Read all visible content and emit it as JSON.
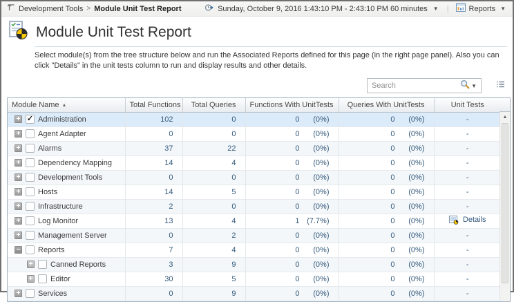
{
  "breadcrumb": {
    "parent": "Development Tools",
    "separator": ">",
    "current": "Module Unit Test Report"
  },
  "topbar": {
    "time_range_label": "Sunday, October 9, 2016 1:43:10 PM - 2:43:10 PM 60 minutes",
    "reports_label": "Reports"
  },
  "page": {
    "title": "Module Unit Test Report",
    "description": "Select module(s) from the tree structure below and run the Associated Reports defined for this page (in the right page panel). Also you can click \"Details\" in the unit tests column to run and display results and other details."
  },
  "search": {
    "placeholder": "Search"
  },
  "table": {
    "columns": [
      "Module Name",
      "Total Functions",
      "Total Queries",
      "Functions With UnitTests",
      "Queries With UnitTests",
      "Unit Tests"
    ],
    "sort": {
      "column": "Module Name",
      "direction": "asc"
    },
    "rows": [
      {
        "name": "Administration",
        "level": 0,
        "expanded": false,
        "checked": true,
        "selected": true,
        "total_functions": "102",
        "total_queries": "0",
        "functions_with_unittests": "0",
        "functions_with_unittests_pct": "(0%)",
        "queries_with_unittests": "0",
        "queries_with_unittests_pct": "(0%)",
        "unit_tests": "-",
        "has_details": false
      },
      {
        "name": "Agent Adapter",
        "level": 0,
        "expanded": false,
        "checked": false,
        "selected": false,
        "total_functions": "0",
        "total_queries": "0",
        "functions_with_unittests": "0",
        "functions_with_unittests_pct": "(0%)",
        "queries_with_unittests": "0",
        "queries_with_unittests_pct": "(0%)",
        "unit_tests": "-",
        "has_details": false
      },
      {
        "name": "Alarms",
        "level": 0,
        "expanded": false,
        "checked": false,
        "selected": false,
        "total_functions": "37",
        "total_queries": "22",
        "functions_with_unittests": "0",
        "functions_with_unittests_pct": "(0%)",
        "queries_with_unittests": "0",
        "queries_with_unittests_pct": "(0%)",
        "unit_tests": "-",
        "has_details": false
      },
      {
        "name": "Dependency Mapping",
        "level": 0,
        "expanded": false,
        "checked": false,
        "selected": false,
        "total_functions": "14",
        "total_queries": "4",
        "functions_with_unittests": "0",
        "functions_with_unittests_pct": "(0%)",
        "queries_with_unittests": "0",
        "queries_with_unittests_pct": "(0%)",
        "unit_tests": "-",
        "has_details": false
      },
      {
        "name": "Development Tools",
        "level": 0,
        "expanded": false,
        "checked": false,
        "selected": false,
        "total_functions": "0",
        "total_queries": "0",
        "functions_with_unittests": "0",
        "functions_with_unittests_pct": "(0%)",
        "queries_with_unittests": "0",
        "queries_with_unittests_pct": "(0%)",
        "unit_tests": "-",
        "has_details": false
      },
      {
        "name": "Hosts",
        "level": 0,
        "expanded": false,
        "checked": false,
        "selected": false,
        "total_functions": "14",
        "total_queries": "5",
        "functions_with_unittests": "0",
        "functions_with_unittests_pct": "(0%)",
        "queries_with_unittests": "0",
        "queries_with_unittests_pct": "(0%)",
        "unit_tests": "-",
        "has_details": false
      },
      {
        "name": "Infrastructure",
        "level": 0,
        "expanded": false,
        "checked": false,
        "selected": false,
        "total_functions": "2",
        "total_queries": "0",
        "functions_with_unittests": "0",
        "functions_with_unittests_pct": "(0%)",
        "queries_with_unittests": "0",
        "queries_with_unittests_pct": "(0%)",
        "unit_tests": "-",
        "has_details": false
      },
      {
        "name": "Log Monitor",
        "level": 0,
        "expanded": false,
        "checked": false,
        "selected": false,
        "total_functions": "13",
        "total_queries": "4",
        "functions_with_unittests": "1",
        "functions_with_unittests_pct": "(7.7%)",
        "queries_with_unittests": "0",
        "queries_with_unittests_pct": "(0%)",
        "unit_tests": "Details",
        "has_details": true
      },
      {
        "name": "Management Server",
        "level": 0,
        "expanded": false,
        "checked": false,
        "selected": false,
        "total_functions": "0",
        "total_queries": "2",
        "functions_with_unittests": "0",
        "functions_with_unittests_pct": "(0%)",
        "queries_with_unittests": "0",
        "queries_with_unittests_pct": "(0%)",
        "unit_tests": "-",
        "has_details": false
      },
      {
        "name": "Reports",
        "level": 0,
        "expanded": true,
        "checked": false,
        "selected": false,
        "total_functions": "7",
        "total_queries": "4",
        "functions_with_unittests": "0",
        "functions_with_unittests_pct": "(0%)",
        "queries_with_unittests": "0",
        "queries_with_unittests_pct": "(0%)",
        "unit_tests": "-",
        "has_details": false
      },
      {
        "name": "Canned Reports",
        "level": 1,
        "expanded": false,
        "checked": false,
        "selected": false,
        "total_functions": "3",
        "total_queries": "9",
        "functions_with_unittests": "0",
        "functions_with_unittests_pct": "(0%)",
        "queries_with_unittests": "0",
        "queries_with_unittests_pct": "(0%)",
        "unit_tests": "-",
        "has_details": false
      },
      {
        "name": "Editor",
        "level": 1,
        "expanded": false,
        "checked": false,
        "selected": false,
        "total_functions": "30",
        "total_queries": "5",
        "functions_with_unittests": "0",
        "functions_with_unittests_pct": "(0%)",
        "queries_with_unittests": "0",
        "queries_with_unittests_pct": "(0%)",
        "unit_tests": "-",
        "has_details": false
      },
      {
        "name": "Services",
        "level": 0,
        "expanded": false,
        "checked": false,
        "selected": false,
        "total_functions": "0",
        "total_queries": "9",
        "functions_with_unittests": "0",
        "functions_with_unittests_pct": "(0%)",
        "queries_with_unittests": "0",
        "queries_with_unittests_pct": "(0%)",
        "unit_tests": "-",
        "has_details": false
      }
    ]
  },
  "colors": {
    "selected_row": "#dcebf9",
    "stripe_row": "#f3f7fa",
    "number_text": "#33587a",
    "grid_border": "#a3b3c0"
  }
}
